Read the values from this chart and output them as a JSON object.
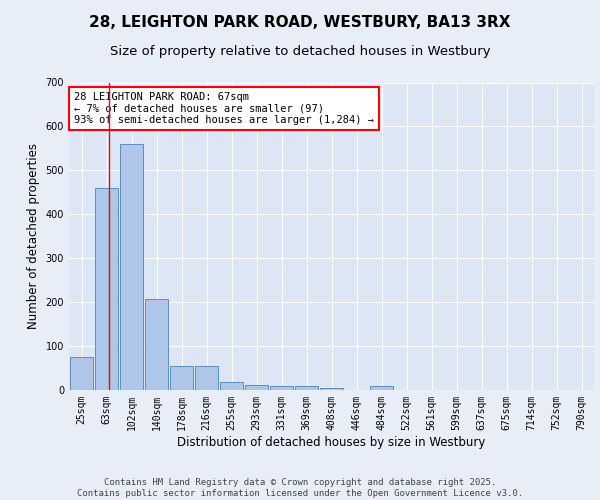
{
  "title": "28, LEIGHTON PARK ROAD, WESTBURY, BA13 3RX",
  "subtitle": "Size of property relative to detached houses in Westbury",
  "xlabel": "Distribution of detached houses by size in Westbury",
  "ylabel": "Number of detached properties",
  "categories": [
    "25sqm",
    "63sqm",
    "102sqm",
    "140sqm",
    "178sqm",
    "216sqm",
    "255sqm",
    "293sqm",
    "331sqm",
    "369sqm",
    "408sqm",
    "446sqm",
    "484sqm",
    "522sqm",
    "561sqm",
    "599sqm",
    "637sqm",
    "675sqm",
    "714sqm",
    "752sqm",
    "790sqm"
  ],
  "values": [
    75,
    460,
    560,
    207,
    55,
    55,
    18,
    12,
    8,
    8,
    5,
    0,
    8,
    0,
    0,
    0,
    0,
    0,
    0,
    0,
    0
  ],
  "bar_color": "#aec6e8",
  "bar_edge_color": "#5a8fc2",
  "bg_color": "#e8eef8",
  "plot_bg_color": "#dce6f5",
  "red_line_x": 1.08,
  "annotation_text": "28 LEIGHTON PARK ROAD: 67sqm\n← 7% of detached houses are smaller (97)\n93% of semi-detached houses are larger (1,284) →",
  "ylim": [
    0,
    700
  ],
  "yticks": [
    0,
    100,
    200,
    300,
    400,
    500,
    600,
    700
  ],
  "footer": "Contains HM Land Registry data © Crown copyright and database right 2025.\nContains public sector information licensed under the Open Government Licence v3.0.",
  "title_fontsize": 11,
  "subtitle_fontsize": 9.5,
  "axis_label_fontsize": 8.5,
  "tick_fontsize": 7,
  "annotation_fontsize": 7.5,
  "footer_fontsize": 6.5
}
